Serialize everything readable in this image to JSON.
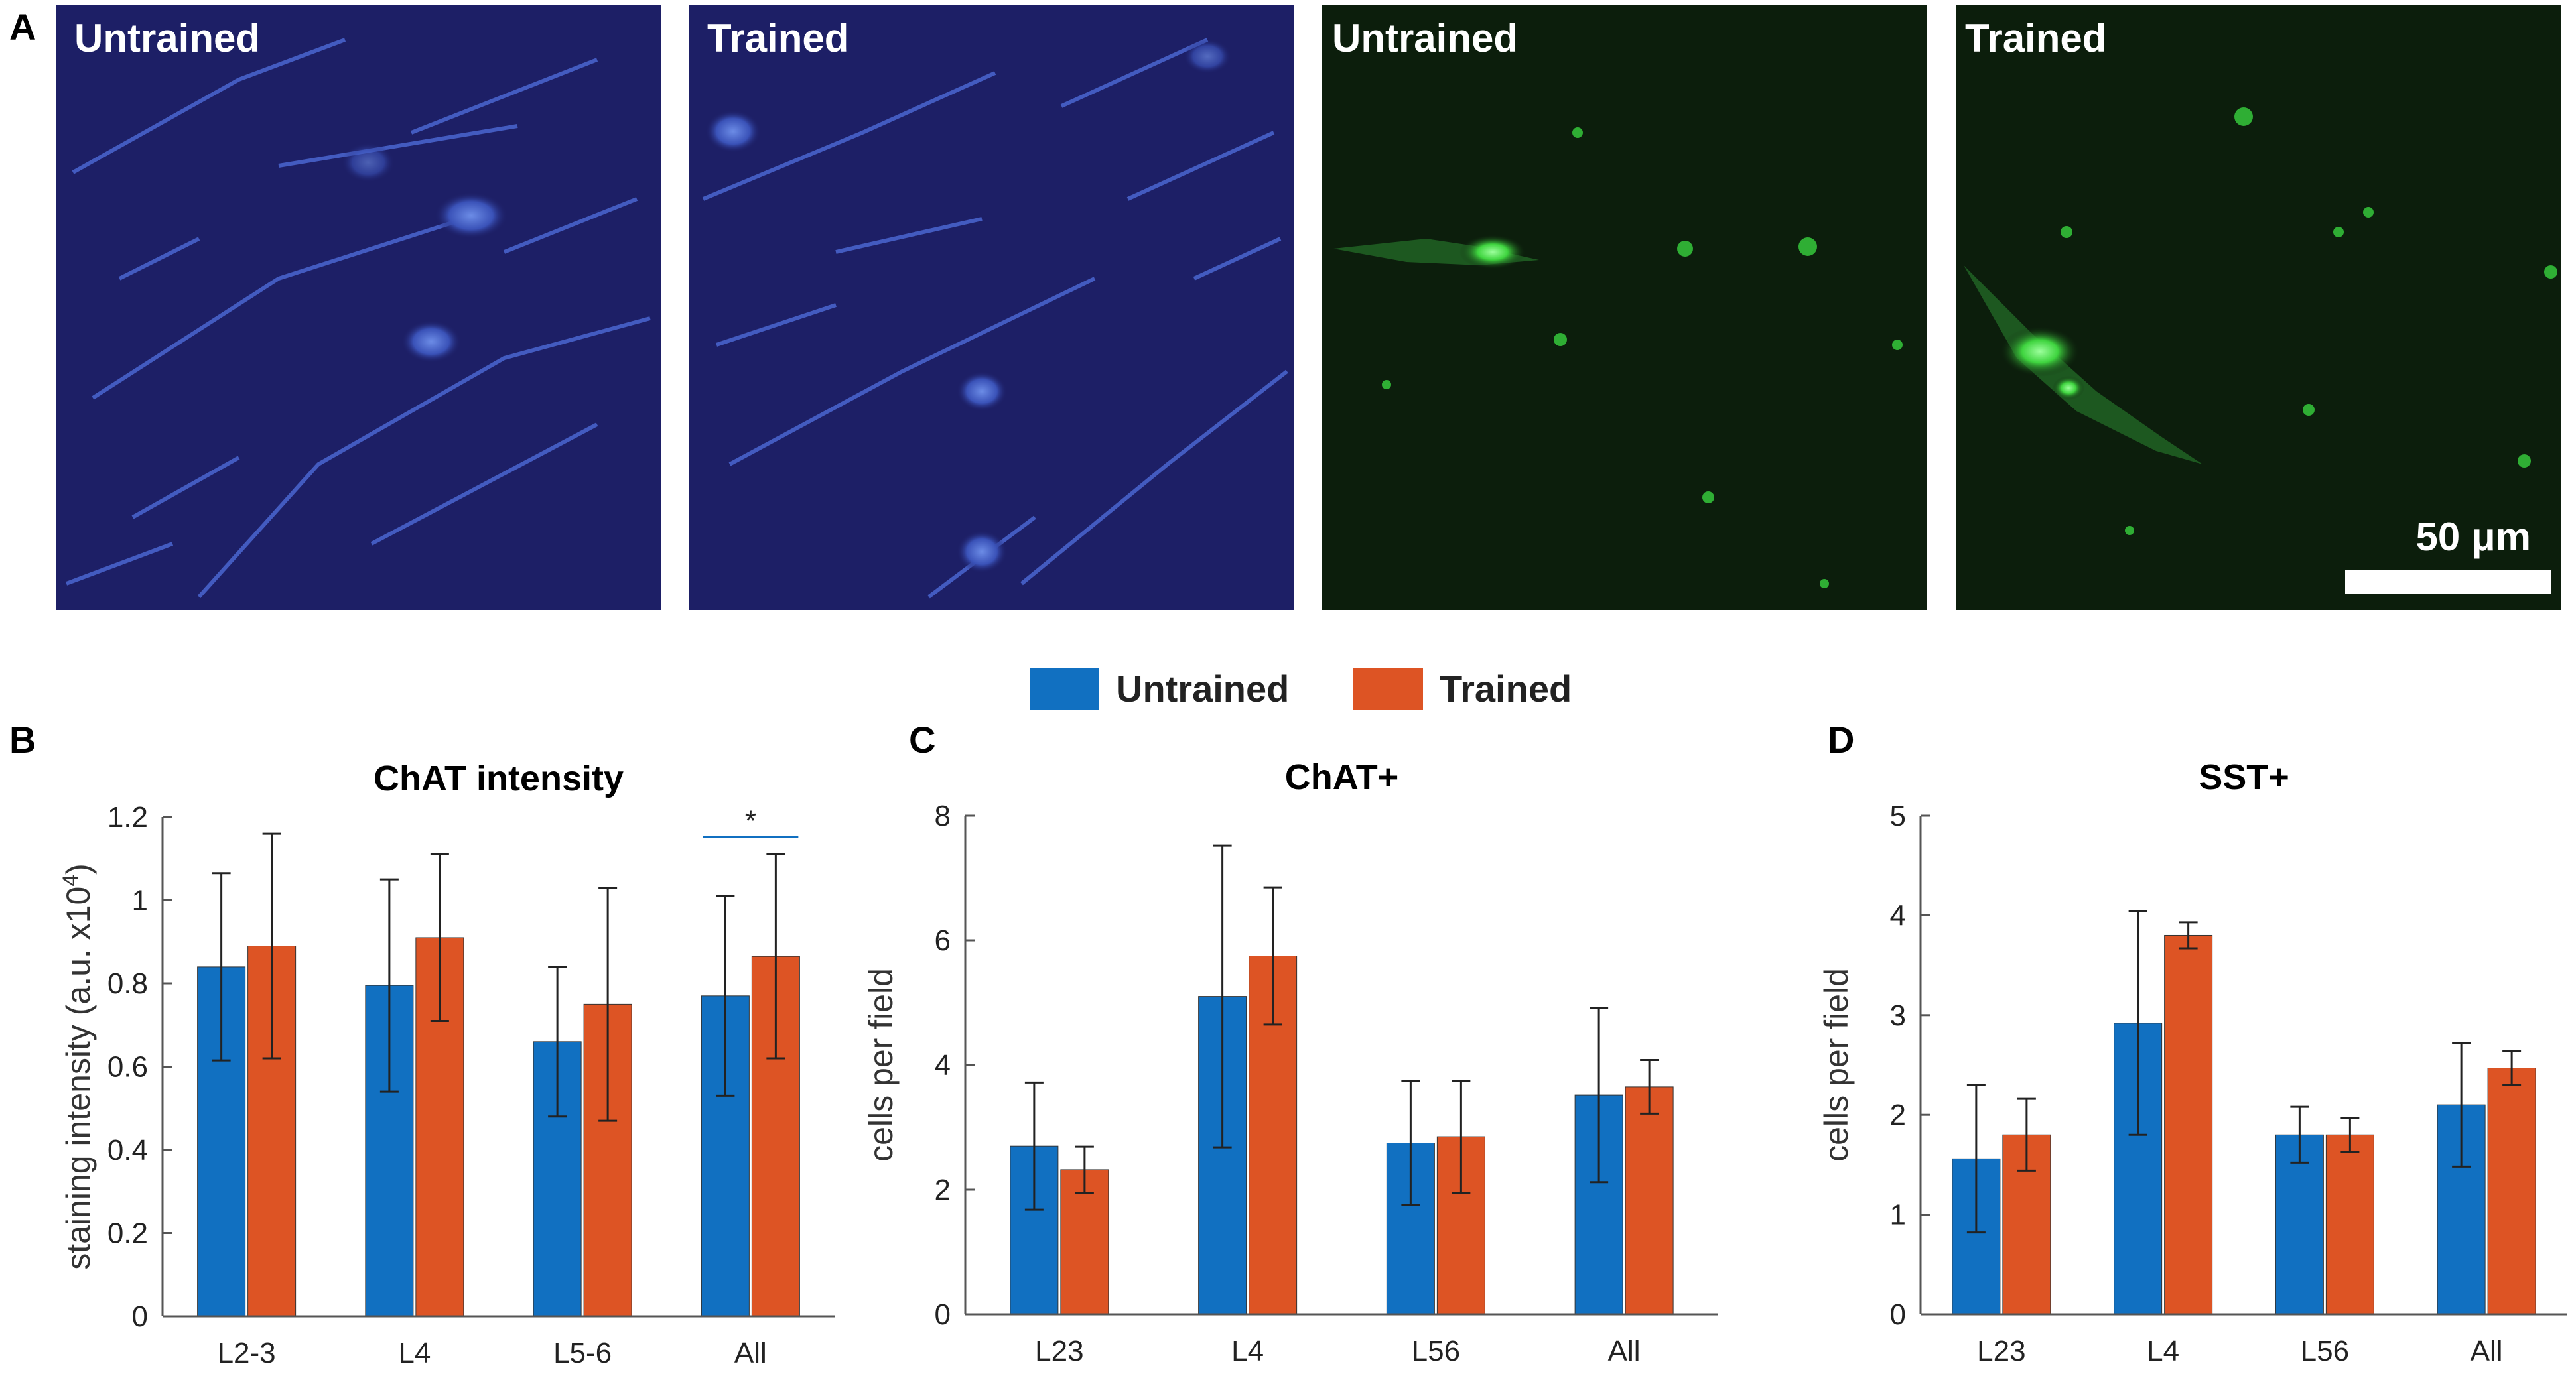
{
  "figure": {
    "panels": {
      "a": "A",
      "b": "B",
      "c": "C",
      "d": "D"
    },
    "images": [
      {
        "label": "Untrained",
        "stain": "blue"
      },
      {
        "label": "Trained",
        "stain": "blue"
      },
      {
        "label": "Untrained",
        "stain": "green"
      },
      {
        "label": "Trained",
        "stain": "green"
      }
    ],
    "scale_bar_label": "50 μm",
    "legend": {
      "untrained": "Untrained",
      "trained": "Trained"
    },
    "colors": {
      "untrained": "#1170c1",
      "trained": "#dd5424",
      "blue_bg": "#1d1f66",
      "green_bg": "#0c1e0c"
    }
  },
  "chart_data": [
    {
      "type": "bar",
      "title": "ChAT intensity",
      "ylabel": "staining intensity (a.u. x10",
      "ylabel_sup": "4",
      "ylabel_end": ")",
      "categories": [
        "L2-3",
        "L4",
        "L5-6",
        "All"
      ],
      "ylim": [
        0,
        1.2
      ],
      "yticks": [
        "0",
        "0.2",
        "0.4",
        "0.6",
        "0.8",
        "1",
        "1.2"
      ],
      "ytick_values": [
        0,
        0.2,
        0.4,
        0.6,
        0.8,
        1.0,
        1.2
      ],
      "series": [
        {
          "name": "Untrained",
          "values": [
            0.84,
            0.795,
            0.66,
            0.77
          ],
          "errors": [
            0.225,
            0.255,
            0.18,
            0.24
          ]
        },
        {
          "name": "Trained",
          "values": [
            0.89,
            0.91,
            0.75,
            0.865
          ],
          "errors": [
            0.27,
            0.2,
            0.28,
            0.245
          ]
        }
      ],
      "significance": {
        "category": "All",
        "label": "*"
      }
    },
    {
      "type": "bar",
      "title": "ChAT+",
      "ylabel": "cells per field",
      "categories": [
        "L23",
        "L4",
        "L56",
        "All"
      ],
      "ylim": [
        0,
        8
      ],
      "yticks": [
        "0",
        "2",
        "4",
        "6",
        "8"
      ],
      "ytick_values": [
        0,
        2,
        4,
        6,
        8
      ],
      "series": [
        {
          "name": "Untrained",
          "values": [
            2.7,
            5.1,
            2.75,
            3.52
          ],
          "errors": [
            1.02,
            2.42,
            1.0,
            1.4
          ]
        },
        {
          "name": "Trained",
          "values": [
            2.32,
            5.75,
            2.85,
            3.65
          ],
          "errors": [
            0.37,
            1.1,
            0.9,
            0.43
          ]
        }
      ]
    },
    {
      "type": "bar",
      "title": "SST+",
      "ylabel": "cells per field",
      "categories": [
        "L23",
        "L4",
        "L56",
        "All"
      ],
      "ylim": [
        0,
        5
      ],
      "yticks": [
        "0",
        "1",
        "2",
        "3",
        "4",
        "5"
      ],
      "ytick_values": [
        0,
        1,
        2,
        3,
        4,
        5
      ],
      "series": [
        {
          "name": "Untrained",
          "values": [
            1.56,
            2.92,
            1.8,
            2.1
          ],
          "errors": [
            0.74,
            1.12,
            0.28,
            0.62
          ]
        },
        {
          "name": "Trained",
          "values": [
            1.8,
            3.8,
            1.8,
            2.47
          ],
          "errors": [
            0.36,
            0.13,
            0.17,
            0.17
          ]
        }
      ]
    }
  ]
}
